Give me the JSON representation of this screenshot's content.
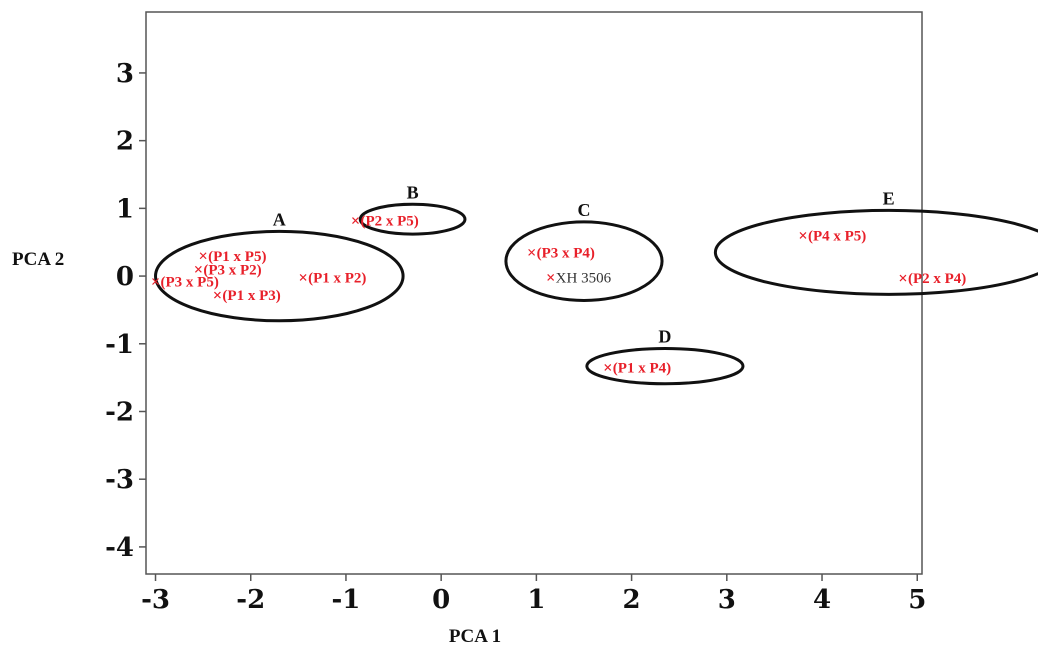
{
  "chart_data": {
    "type": "scatter",
    "title": "",
    "xlabel": "PCA 1",
    "ylabel": "PCA 2",
    "xlim": [
      -3.1,
      5.05
    ],
    "ylim": [
      -4.4,
      3.9
    ],
    "xticks": [
      -3,
      -2,
      -1,
      0,
      1,
      2,
      3,
      4,
      5
    ],
    "yticks": [
      3,
      2,
      1,
      0,
      -1,
      -2,
      -3,
      -4
    ],
    "grid": false,
    "colors": {
      "points": "#e8202a",
      "ellipses": "#111111",
      "axes": "#555555"
    },
    "points": [
      {
        "label": "(P1 x P5)",
        "x": -2.5,
        "y": 0.3
      },
      {
        "label": "(P3 x P2)",
        "x": -2.55,
        "y": 0.1
      },
      {
        "label": "(P3 x P5)",
        "x": -3.0,
        "y": -0.08
      },
      {
        "label": "(P1 x P3)",
        "x": -2.35,
        "y": -0.28
      },
      {
        "label": "(P1 x P2)",
        "x": -1.45,
        "y": -0.02
      },
      {
        "label": "(P2 x P5)",
        "x": -0.9,
        "y": 0.82
      },
      {
        "label": "(P3 x P4)",
        "x": 0.95,
        "y": 0.35
      },
      {
        "label": "XH 3506",
        "x": 1.15,
        "y": -0.02,
        "is_check": true
      },
      {
        "label": "(P1 x P4)",
        "x": 1.75,
        "y": -1.35
      },
      {
        "label": "(P4 x P5)",
        "x": 3.8,
        "y": 0.6
      },
      {
        "label": "(P2 x P4)",
        "x": 4.85,
        "y": -0.03
      }
    ],
    "clusters": [
      {
        "label": "A",
        "cx": -1.7,
        "cy": 0.0,
        "rx": 1.3,
        "ry": 0.66
      },
      {
        "label": "B",
        "cx": -0.3,
        "cy": 0.84,
        "rx": 0.55,
        "ry": 0.22
      },
      {
        "label": "C",
        "cx": 1.5,
        "cy": 0.22,
        "rx": 0.82,
        "ry": 0.58
      },
      {
        "label": "D",
        "cx": 2.35,
        "cy": -1.33,
        "rx": 0.82,
        "ry": 0.26
      },
      {
        "label": "E",
        "cx": 4.7,
        "cy": 0.35,
        "rx": 1.82,
        "ry": 0.62
      }
    ]
  }
}
